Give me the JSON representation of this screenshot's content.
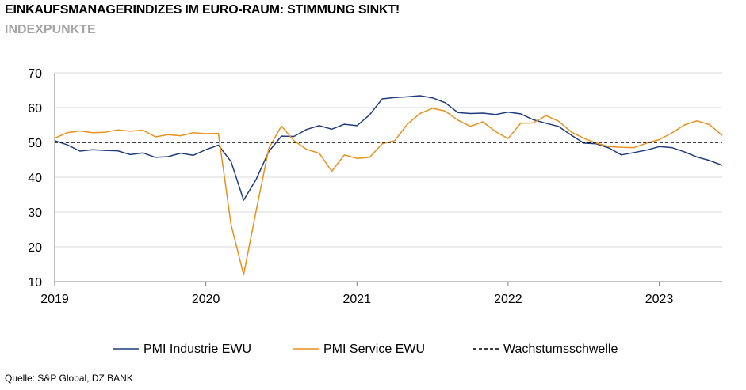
{
  "title": "EINKAUFSMANAGERINDIZES IM EURO-RAUM: STIMMUNG SINKT!",
  "subtitle": "INDEXPUNKTE",
  "source": "Quelle: S&P Global, DZ BANK",
  "colors": {
    "industrie": "#1f3d7a",
    "service": "#e8901e",
    "threshold": "#000000",
    "grid": "#d9d9d9"
  },
  "chart_data": {
    "type": "line",
    "title": "EINKAUFSMANAGERINDIZES IM EURO-RAUM: STIMMUNG SINKT!",
    "ylim": [
      10,
      70
    ],
    "yticks": [
      "10",
      "20",
      "30",
      "40",
      "50",
      "60",
      "70"
    ],
    "xlim": [
      2019.0,
      2023.4167
    ],
    "xticks": [
      "2019",
      "2020",
      "2021",
      "2022",
      "2023"
    ],
    "grid": true,
    "legend_position": "bottom",
    "series": [
      {
        "name": "PMI Industrie EWU",
        "x": [
          2019.0,
          2019.0833,
          2019.1667,
          2019.25,
          2019.3333,
          2019.4167,
          2019.5,
          2019.5833,
          2019.6667,
          2019.75,
          2019.8333,
          2019.9167,
          2020.0,
          2020.0833,
          2020.1667,
          2020.25,
          2020.3333,
          2020.4167,
          2020.5,
          2020.5833,
          2020.6667,
          2020.75,
          2020.8333,
          2020.9167,
          2021.0,
          2021.0833,
          2021.1667,
          2021.25,
          2021.3333,
          2021.4167,
          2021.5,
          2021.5833,
          2021.6667,
          2021.75,
          2021.8333,
          2021.9167,
          2022.0,
          2022.0833,
          2022.1667,
          2022.25,
          2022.3333,
          2022.4167,
          2022.5,
          2022.5833,
          2022.6667,
          2022.75,
          2022.8333,
          2022.9167,
          2023.0,
          2023.0833,
          2023.1667,
          2023.25,
          2023.3333,
          2023.4167
        ],
        "values": [
          50.5,
          49.3,
          47.5,
          47.9,
          47.7,
          47.6,
          46.5,
          47.0,
          45.7,
          45.9,
          46.9,
          46.3,
          47.9,
          49.2,
          44.5,
          33.4,
          39.4,
          47.4,
          51.8,
          51.7,
          53.7,
          54.8,
          53.8,
          55.2,
          54.8,
          57.9,
          62.5,
          62.9,
          63.1,
          63.4,
          62.8,
          61.4,
          58.6,
          58.3,
          58.4,
          58.0,
          58.7,
          58.2,
          56.5,
          55.5,
          54.6,
          52.1,
          49.8,
          49.6,
          48.4,
          46.4,
          47.1,
          47.8,
          48.8,
          48.5,
          47.3,
          45.8,
          44.8,
          43.4
        ]
      },
      {
        "name": "PMI Service EWU",
        "x": [
          2019.0,
          2019.0833,
          2019.1667,
          2019.25,
          2019.3333,
          2019.4167,
          2019.5,
          2019.5833,
          2019.6667,
          2019.75,
          2019.8333,
          2019.9167,
          2020.0,
          2020.0833,
          2020.1667,
          2020.25,
          2020.3333,
          2020.4167,
          2020.5,
          2020.5833,
          2020.6667,
          2020.75,
          2020.8333,
          2020.9167,
          2021.0,
          2021.0833,
          2021.1667,
          2021.25,
          2021.3333,
          2021.4167,
          2021.5,
          2021.5833,
          2021.6667,
          2021.75,
          2021.8333,
          2021.9167,
          2022.0,
          2022.0833,
          2022.1667,
          2022.25,
          2022.3333,
          2022.4167,
          2022.5,
          2022.5833,
          2022.6667,
          2022.75,
          2022.8333,
          2022.9167,
          2023.0,
          2023.0833,
          2023.1667,
          2023.25,
          2023.3333,
          2023.4167
        ],
        "values": [
          51.2,
          52.8,
          53.3,
          52.8,
          52.9,
          53.6,
          53.2,
          53.5,
          51.6,
          52.2,
          51.9,
          52.8,
          52.5,
          52.6,
          26.4,
          12.0,
          30.5,
          48.3,
          54.7,
          50.5,
          48.0,
          46.9,
          41.7,
          46.4,
          45.4,
          45.7,
          49.6,
          50.5,
          55.2,
          58.3,
          59.8,
          59.0,
          56.4,
          54.6,
          55.9,
          53.1,
          51.1,
          55.5,
          55.6,
          57.7,
          56.1,
          53.0,
          51.2,
          49.8,
          48.8,
          48.6,
          48.5,
          49.8,
          50.8,
          52.7,
          55.0,
          56.2,
          55.1,
          52.0
        ]
      },
      {
        "name": "Wachstumsschwelle",
        "x": [
          2019.0,
          2023.4167
        ],
        "values": [
          50,
          50
        ]
      }
    ]
  }
}
